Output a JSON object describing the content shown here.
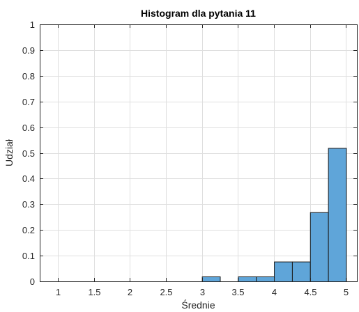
{
  "chart_data": {
    "type": "bar",
    "subtype": "histogram",
    "title": "Histogram dla pytania 11",
    "xlabel": "Średnie",
    "ylabel": "Udział",
    "xlim": [
      0.75,
      5.15
    ],
    "ylim": [
      0,
      1
    ],
    "grid": true,
    "bin_width": 0.25,
    "bins": [
      {
        "start": 3.0,
        "end": 3.25,
        "value": 0.019
      },
      {
        "start": 3.5,
        "end": 3.75,
        "value": 0.019
      },
      {
        "start": 3.75,
        "end": 4.0,
        "value": 0.019
      },
      {
        "start": 4.0,
        "end": 4.25,
        "value": 0.077
      },
      {
        "start": 4.25,
        "end": 4.5,
        "value": 0.077
      },
      {
        "start": 4.5,
        "end": 4.75,
        "value": 0.269
      },
      {
        "start": 4.75,
        "end": 5.0,
        "value": 0.519
      }
    ],
    "x_ticks": [
      {
        "value": 1,
        "label": "1"
      },
      {
        "value": 1.5,
        "label": "1.5"
      },
      {
        "value": 2,
        "label": "2"
      },
      {
        "value": 2.5,
        "label": "2.5"
      },
      {
        "value": 3,
        "label": "3"
      },
      {
        "value": 3.5,
        "label": "3.5"
      },
      {
        "value": 4,
        "label": "4"
      },
      {
        "value": 4.5,
        "label": "4.5"
      },
      {
        "value": 5,
        "label": "5"
      }
    ],
    "y_ticks": [
      {
        "value": 0,
        "label": "0"
      },
      {
        "value": 0.1,
        "label": "0.1"
      },
      {
        "value": 0.2,
        "label": "0.2"
      },
      {
        "value": 0.3,
        "label": "0.3"
      },
      {
        "value": 0.4,
        "label": "0.4"
      },
      {
        "value": 0.5,
        "label": "0.5"
      },
      {
        "value": 0.6,
        "label": "0.6"
      },
      {
        "value": 0.7,
        "label": "0.7"
      },
      {
        "value": 0.8,
        "label": "0.8"
      },
      {
        "value": 0.9,
        "label": "0.9"
      },
      {
        "value": 1,
        "label": "1"
      }
    ],
    "colors": {
      "bar_fill": "#5fa5d9",
      "bar_edge": "#1a1a1a",
      "grid": "#dfdfdf",
      "axis": "#262626"
    }
  }
}
